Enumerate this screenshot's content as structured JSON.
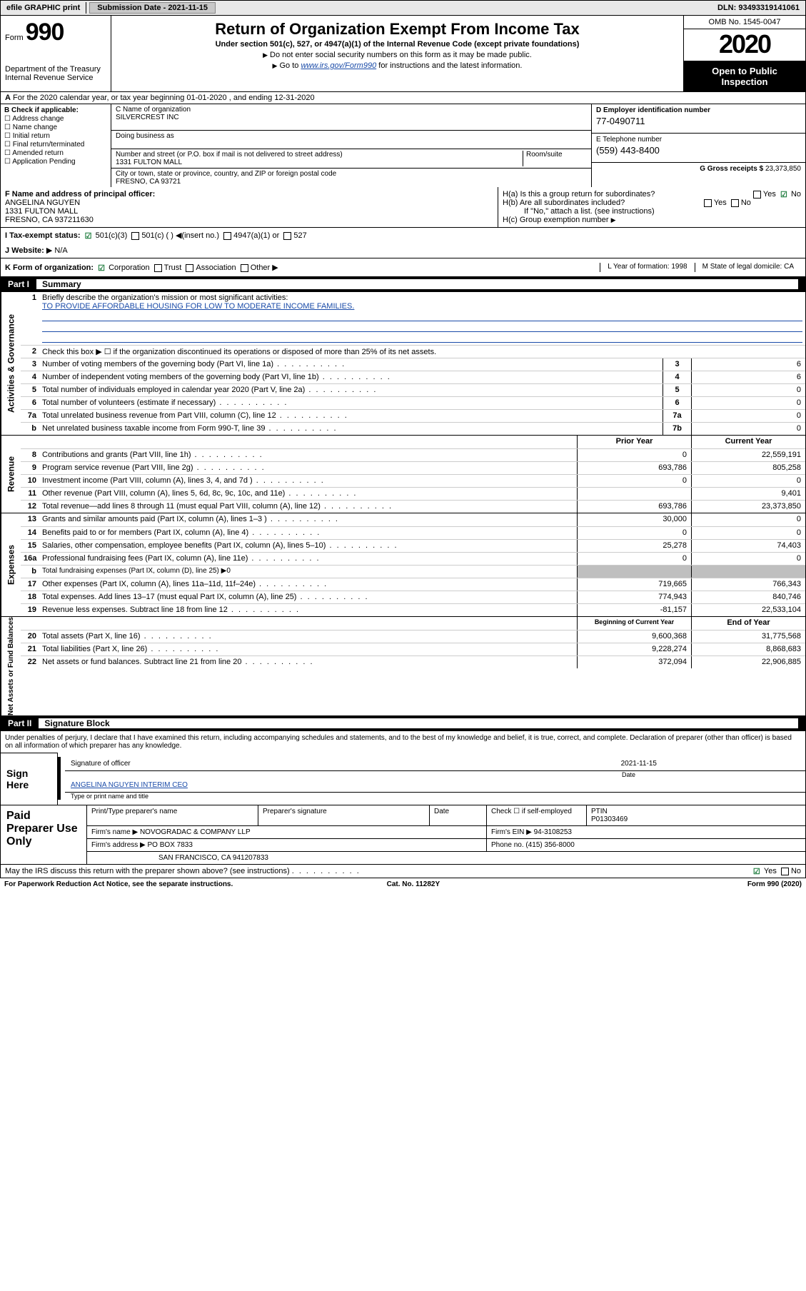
{
  "colors": {
    "link": "#1a4ba8",
    "check": "#1a7a3a",
    "header_bg": "#000000",
    "shade": "#bfbfbf",
    "topbar_bg": "#e8e8e8"
  },
  "topbar": {
    "efile": "efile GRAPHIC print",
    "sub_label": "Submission Date - 2021-11-15",
    "dln": "DLN: 93493319141061"
  },
  "header": {
    "form_prefix": "Form",
    "form_no": "990",
    "dept1": "Department of the Treasury",
    "dept2": "Internal Revenue Service",
    "title": "Return of Organization Exempt From Income Tax",
    "sub": "Under section 501(c), 527, or 4947(a)(1) of the Internal Revenue Code (except private foundations)",
    "note1": "Do not enter social security numbers on this form as it may be made public.",
    "note2_pre": "Go to ",
    "note2_link": "www.irs.gov/Form990",
    "note2_post": " for instructions and the latest information.",
    "omb": "OMB No. 1545-0047",
    "year": "2020",
    "open1": "Open to Public",
    "open2": "Inspection"
  },
  "row_a": "For the 2020 calendar year, or tax year beginning 01-01-2020    , and ending 12-31-2020",
  "box_b": {
    "label": "B Check if applicable:",
    "items": [
      "Address change",
      "Name change",
      "Initial return",
      "Final return/terminated",
      "Amended return",
      "Application Pending"
    ]
  },
  "box_c": {
    "name_label": "C Name of organization",
    "name": "SILVERCREST INC",
    "dba_label": "Doing business as",
    "addr_label": "Number and street (or P.O. box if mail is not delivered to street address)",
    "room_label": "Room/suite",
    "addr": "1331 FULTON MALL",
    "city_label": "City or town, state or province, country, and ZIP or foreign postal code",
    "city": "FRESNO, CA  93721"
  },
  "box_d": {
    "label": "D Employer identification number",
    "val": "77-0490711"
  },
  "box_e": {
    "label": "E Telephone number",
    "val": "(559) 443-8400"
  },
  "box_g": {
    "label": "G Gross receipts $",
    "val": "23,373,850"
  },
  "box_f": {
    "label": "F  Name and address of principal officer:",
    "name": "ANGELINA NGUYEN",
    "addr1": "1331 FULTON MALL",
    "addr2": "FRESNO, CA  937211630"
  },
  "box_h": {
    "ha": "H(a)  Is this a group return for subordinates?",
    "hb": "H(b)  Are all subordinates included?",
    "hb_note": "If \"No,\" attach a list. (see instructions)",
    "hc": "H(c)  Group exemption number",
    "yes": "Yes",
    "no": "No"
  },
  "row_i": {
    "label": "I   Tax-exempt status:",
    "o1": "501(c)(3)",
    "o2": "501(c) (  )",
    "o2b": "(insert no.)",
    "o3": "4947(a)(1) or",
    "o4": "527"
  },
  "row_j": {
    "label": "J   Website:",
    "val": "N/A"
  },
  "row_k": {
    "label": "K Form of organization:",
    "opts": [
      "Corporation",
      "Trust",
      "Association",
      "Other"
    ],
    "l": "L Year of formation: 1998",
    "m": "M State of legal domicile: CA"
  },
  "part1": {
    "tab": "Part I",
    "title": "Summary",
    "l1": "Briefly describe the organization's mission or most significant activities:",
    "mission": "TO PROVIDE AFFORDABLE HOUSING FOR LOW TO MODERATE INCOME FAMILIES.",
    "l2": "Check this box ▶ ☐  if the organization discontinued its operations or disposed of more than 25% of its net assets.",
    "lines_gov": [
      {
        "n": "3",
        "t": "Number of voting members of the governing body (Part VI, line 1a)",
        "box": "3",
        "v": "6"
      },
      {
        "n": "4",
        "t": "Number of independent voting members of the governing body (Part VI, line 1b)",
        "box": "4",
        "v": "6"
      },
      {
        "n": "5",
        "t": "Total number of individuals employed in calendar year 2020 (Part V, line 2a)",
        "box": "5",
        "v": "0"
      },
      {
        "n": "6",
        "t": "Total number of volunteers (estimate if necessary)",
        "box": "6",
        "v": "0"
      },
      {
        "n": "7a",
        "t": "Total unrelated business revenue from Part VIII, column (C), line 12",
        "box": "7a",
        "v": "0"
      },
      {
        "n": "b",
        "t": "Net unrelated business taxable income from Form 990-T, line 39",
        "box": "7b",
        "v": "0"
      }
    ],
    "hdr_prior": "Prior Year",
    "hdr_curr": "Current Year",
    "rev": [
      {
        "n": "8",
        "t": "Contributions and grants (Part VIII, line 1h)",
        "p": "0",
        "c": "22,559,191"
      },
      {
        "n": "9",
        "t": "Program service revenue (Part VIII, line 2g)",
        "p": "693,786",
        "c": "805,258"
      },
      {
        "n": "10",
        "t": "Investment income (Part VIII, column (A), lines 3, 4, and 7d )",
        "p": "0",
        "c": "0"
      },
      {
        "n": "11",
        "t": "Other revenue (Part VIII, column (A), lines 5, 6d, 8c, 9c, 10c, and 11e)",
        "p": "",
        "c": "9,401"
      },
      {
        "n": "12",
        "t": "Total revenue—add lines 8 through 11 (must equal Part VIII, column (A), line 12)",
        "p": "693,786",
        "c": "23,373,850"
      }
    ],
    "exp": [
      {
        "n": "13",
        "t": "Grants and similar amounts paid (Part IX, column (A), lines 1–3 )",
        "p": "30,000",
        "c": "0"
      },
      {
        "n": "14",
        "t": "Benefits paid to or for members (Part IX, column (A), line 4)",
        "p": "0",
        "c": "0"
      },
      {
        "n": "15",
        "t": "Salaries, other compensation, employee benefits (Part IX, column (A), lines 5–10)",
        "p": "25,278",
        "c": "74,403"
      },
      {
        "n": "16a",
        "t": "Professional fundraising fees (Part IX, column (A), line 11e)",
        "p": "0",
        "c": "0"
      },
      {
        "n": "b",
        "t": "Total fundraising expenses (Part IX, column (D), line 25) ▶0",
        "p": "shade",
        "c": "shade"
      },
      {
        "n": "17",
        "t": "Other expenses (Part IX, column (A), lines 11a–11d, 11f–24e)",
        "p": "719,665",
        "c": "766,343"
      },
      {
        "n": "18",
        "t": "Total expenses. Add lines 13–17 (must equal Part IX, column (A), line 25)",
        "p": "774,943",
        "c": "840,746"
      },
      {
        "n": "19",
        "t": "Revenue less expenses. Subtract line 18 from line 12",
        "p": "-81,157",
        "c": "22,533,104"
      }
    ],
    "hdr_beg": "Beginning of Current Year",
    "hdr_end": "End of Year",
    "net": [
      {
        "n": "20",
        "t": "Total assets (Part X, line 16)",
        "p": "9,600,368",
        "c": "31,775,568"
      },
      {
        "n": "21",
        "t": "Total liabilities (Part X, line 26)",
        "p": "9,228,274",
        "c": "8,868,683"
      },
      {
        "n": "22",
        "t": "Net assets or fund balances. Subtract line 21 from line 20",
        "p": "372,094",
        "c": "22,906,885"
      }
    ],
    "side_gov": "Activities & Governance",
    "side_rev": "Revenue",
    "side_exp": "Expenses",
    "side_net": "Net Assets or Fund Balances"
  },
  "part2": {
    "tab": "Part II",
    "title": "Signature Block",
    "perjury": "Under penalties of perjury, I declare that I have examined this return, including accompanying schedules and statements, and to the best of my knowledge and belief, it is true, correct, and complete. Declaration of preparer (other than officer) is based on all information of which preparer has any knowledge.",
    "sign_here": "Sign Here",
    "sig_officer": "Signature of officer",
    "sig_date": "2021-11-15",
    "date_lbl": "Date",
    "officer": "ANGELINA NGUYEN  INTERIM CEO",
    "type_lbl": "Type or print name and title",
    "paid": "Paid Preparer Use Only",
    "pp_name_lbl": "Print/Type preparer's name",
    "pp_sig_lbl": "Preparer's signature",
    "pp_date_lbl": "Date",
    "pp_check": "Check ☐ if self-employed",
    "ptin_lbl": "PTIN",
    "ptin": "P01303469",
    "firm_name_lbl": "Firm's name    ▶",
    "firm_name": "NOVOGRADAC & COMPANY LLP",
    "firm_ein_lbl": "Firm's EIN ▶",
    "firm_ein": "94-3108253",
    "firm_addr_lbl": "Firm's address ▶",
    "firm_addr1": "PO BOX 7833",
    "firm_addr2": "SAN FRANCISCO, CA  941207833",
    "phone_lbl": "Phone no.",
    "phone": "(415) 356-8000",
    "discuss": "May the IRS discuss this return with the preparer shown above? (see instructions)"
  },
  "footer": {
    "left": "For Paperwork Reduction Act Notice, see the separate instructions.",
    "mid": "Cat. No. 11282Y",
    "right": "Form 990 (2020)"
  }
}
